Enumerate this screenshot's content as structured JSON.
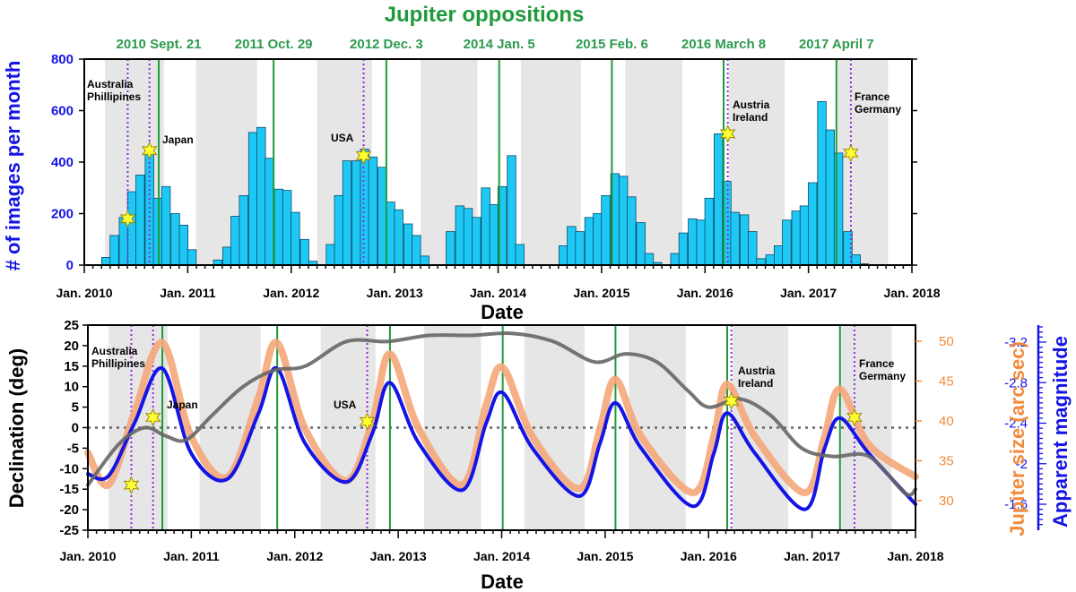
{
  "chart_data": [
    {
      "type": "bar",
      "title": "Jupiter oppositions",
      "ylabel": "# of images per month",
      "xlabel": "Date",
      "ylim": [
        0,
        800
      ],
      "yticks": [
        0,
        200,
        400,
        600,
        800
      ],
      "xlim": [
        2010.0,
        2018.0
      ],
      "xticks": [
        {
          "x": 2010,
          "label": "Jan. 2010"
        },
        {
          "x": 2011,
          "label": "Jan. 2011"
        },
        {
          "x": 2012,
          "label": "Jan. 2012"
        },
        {
          "x": 2013,
          "label": "Jan. 2013"
        },
        {
          "x": 2014,
          "label": "Jan. 2014"
        },
        {
          "x": 2015,
          "label": "Jan. 2015"
        },
        {
          "x": 2016,
          "label": "Jan. 2016"
        },
        {
          "x": 2017,
          "label": "Jan. 2017"
        },
        {
          "x": 2018,
          "label": "Jan. 2018"
        }
      ],
      "bar_color": "#1ec8f5",
      "months": [
        {
          "x": 2010.21,
          "v": 30
        },
        {
          "x": 2010.29,
          "v": 115
        },
        {
          "x": 2010.38,
          "v": 185
        },
        {
          "x": 2010.46,
          "v": 285
        },
        {
          "x": 2010.54,
          "v": 350
        },
        {
          "x": 2010.63,
          "v": 440
        },
        {
          "x": 2010.71,
          "v": 260
        },
        {
          "x": 2010.79,
          "v": 305
        },
        {
          "x": 2010.88,
          "v": 200
        },
        {
          "x": 2010.96,
          "v": 155
        },
        {
          "x": 2011.04,
          "v": 60
        },
        {
          "x": 2011.29,
          "v": 20
        },
        {
          "x": 2011.38,
          "v": 70
        },
        {
          "x": 2011.46,
          "v": 190
        },
        {
          "x": 2011.54,
          "v": 270
        },
        {
          "x": 2011.63,
          "v": 515
        },
        {
          "x": 2011.71,
          "v": 535
        },
        {
          "x": 2011.79,
          "v": 415
        },
        {
          "x": 2011.88,
          "v": 295
        },
        {
          "x": 2011.96,
          "v": 290
        },
        {
          "x": 2012.04,
          "v": 205
        },
        {
          "x": 2012.13,
          "v": 100
        },
        {
          "x": 2012.21,
          "v": 15
        },
        {
          "x": 2012.38,
          "v": 80
        },
        {
          "x": 2012.46,
          "v": 270
        },
        {
          "x": 2012.54,
          "v": 405
        },
        {
          "x": 2012.63,
          "v": 405
        },
        {
          "x": 2012.71,
          "v": 450
        },
        {
          "x": 2012.79,
          "v": 420
        },
        {
          "x": 2012.88,
          "v": 380
        },
        {
          "x": 2012.96,
          "v": 245
        },
        {
          "x": 2013.04,
          "v": 215
        },
        {
          "x": 2013.13,
          "v": 160
        },
        {
          "x": 2013.21,
          "v": 115
        },
        {
          "x": 2013.29,
          "v": 35
        },
        {
          "x": 2013.54,
          "v": 130
        },
        {
          "x": 2013.63,
          "v": 230
        },
        {
          "x": 2013.71,
          "v": 220
        },
        {
          "x": 2013.79,
          "v": 185
        },
        {
          "x": 2013.88,
          "v": 300
        },
        {
          "x": 2013.96,
          "v": 235
        },
        {
          "x": 2014.04,
          "v": 305
        },
        {
          "x": 2014.13,
          "v": 425
        },
        {
          "x": 2014.21,
          "v": 80
        },
        {
          "x": 2014.63,
          "v": 75
        },
        {
          "x": 2014.71,
          "v": 150
        },
        {
          "x": 2014.79,
          "v": 130
        },
        {
          "x": 2014.88,
          "v": 185
        },
        {
          "x": 2014.96,
          "v": 200
        },
        {
          "x": 2015.04,
          "v": 270
        },
        {
          "x": 2015.13,
          "v": 355
        },
        {
          "x": 2015.21,
          "v": 345
        },
        {
          "x": 2015.29,
          "v": 265
        },
        {
          "x": 2015.38,
          "v": 165
        },
        {
          "x": 2015.46,
          "v": 45
        },
        {
          "x": 2015.54,
          "v": 10
        },
        {
          "x": 2015.71,
          "v": 45
        },
        {
          "x": 2015.79,
          "v": 125
        },
        {
          "x": 2015.88,
          "v": 180
        },
        {
          "x": 2015.96,
          "v": 175
        },
        {
          "x": 2016.04,
          "v": 260
        },
        {
          "x": 2016.13,
          "v": 510
        },
        {
          "x": 2016.21,
          "v": 325
        },
        {
          "x": 2016.29,
          "v": 205
        },
        {
          "x": 2016.38,
          "v": 195
        },
        {
          "x": 2016.46,
          "v": 130
        },
        {
          "x": 2016.54,
          "v": 25
        },
        {
          "x": 2016.63,
          "v": 40
        },
        {
          "x": 2016.71,
          "v": 75
        },
        {
          "x": 2016.79,
          "v": 175
        },
        {
          "x": 2016.88,
          "v": 210
        },
        {
          "x": 2016.96,
          "v": 230
        },
        {
          "x": 2017.04,
          "v": 320
        },
        {
          "x": 2017.13,
          "v": 635
        },
        {
          "x": 2017.21,
          "v": 525
        },
        {
          "x": 2017.29,
          "v": 435
        },
        {
          "x": 2017.38,
          "v": 130
        },
        {
          "x": 2017.46,
          "v": 40
        },
        {
          "x": 2017.54,
          "v": 5
        }
      ]
    },
    {
      "type": "line",
      "xlabel": "Date",
      "ylabel": "Declination (deg)",
      "ylim": [
        -25,
        25
      ],
      "yticks": [
        -25,
        -20,
        -15,
        -10,
        -5,
        0,
        5,
        10,
        15,
        20,
        25
      ],
      "xlim": [
        2010.0,
        2018.0
      ],
      "xticks": [
        {
          "x": 2010,
          "label": "Jan. 2010"
        },
        {
          "x": 2011,
          "label": "Jan. 2011"
        },
        {
          "x": 2012,
          "label": "Jan. 2012"
        },
        {
          "x": 2013,
          "label": "Jan. 2013"
        },
        {
          "x": 2014,
          "label": "Jan. 2014"
        },
        {
          "x": 2015,
          "label": "Jan. 2015"
        },
        {
          "x": 2016,
          "label": "Jan. 2016"
        },
        {
          "x": 2017,
          "label": "Jan. 2017"
        },
        {
          "x": 2018,
          "label": "Jan. 2018"
        }
      ],
      "right_axes": [
        {
          "label": "Jupiter size (arc sec)",
          "color": "#f28a3c",
          "ticks": [
            30,
            35,
            40,
            45,
            50
          ]
        },
        {
          "label": "Apparent magnitude",
          "color": "#1414e6",
          "ticks": [
            "-1.6",
            "-2",
            "-2.4",
            "-2.8",
            "-3.2"
          ]
        }
      ],
      "series": [
        {
          "name": "Declination",
          "color": "#666666",
          "points": [
            [
              2010.0,
              -14
            ],
            [
              2010.3,
              -4
            ],
            [
              2010.55,
              0
            ],
            [
              2010.75,
              -2
            ],
            [
              2010.95,
              -3
            ],
            [
              2011.2,
              3
            ],
            [
              2011.5,
              10
            ],
            [
              2011.8,
              14
            ],
            [
              2012.1,
              15
            ],
            [
              2012.5,
              21
            ],
            [
              2012.9,
              21
            ],
            [
              2013.3,
              22.5
            ],
            [
              2013.7,
              22.5
            ],
            [
              2014.1,
              23
            ],
            [
              2014.5,
              21
            ],
            [
              2014.9,
              16
            ],
            [
              2015.2,
              18
            ],
            [
              2015.5,
              16
            ],
            [
              2015.8,
              9
            ],
            [
              2016.0,
              5
            ],
            [
              2016.3,
              7
            ],
            [
              2016.6,
              3
            ],
            [
              2016.9,
              -5
            ],
            [
              2017.2,
              -7
            ],
            [
              2017.55,
              -7
            ],
            [
              2017.9,
              -16
            ],
            [
              2018.0,
              -15
            ]
          ]
        },
        {
          "name": "Jupiter size (arc sec)",
          "color": "#f5a77a",
          "points": [
            [
              2010.0,
              36
            ],
            [
              2010.2,
              32
            ],
            [
              2010.45,
              41
            ],
            [
              2010.72,
              49.8
            ],
            [
              2011.0,
              38
            ],
            [
              2011.35,
              33
            ],
            [
              2011.65,
              43
            ],
            [
              2011.83,
              49.8
            ],
            [
              2012.1,
              39
            ],
            [
              2012.5,
              32.5
            ],
            [
              2012.75,
              40
            ],
            [
              2012.92,
              48.4
            ],
            [
              2013.2,
              39
            ],
            [
              2013.62,
              32
            ],
            [
              2013.85,
              42
            ],
            [
              2014.01,
              46.7
            ],
            [
              2014.3,
              38
            ],
            [
              2014.75,
              31.5
            ],
            [
              2014.95,
              39
            ],
            [
              2015.1,
              45.2
            ],
            [
              2015.35,
              38
            ],
            [
              2015.85,
              31
            ],
            [
              2016.05,
              38
            ],
            [
              2016.18,
              44.6
            ],
            [
              2016.45,
              38
            ],
            [
              2016.93,
              31
            ],
            [
              2017.12,
              38
            ],
            [
              2017.27,
              44
            ],
            [
              2017.55,
              37
            ],
            [
              2018.0,
              33
            ]
          ]
        },
        {
          "name": "Apparent magnitude",
          "color": "#1414e6",
          "points": [
            [
              2010.0,
              -1.9
            ],
            [
              2010.2,
              -1.88
            ],
            [
              2010.45,
              -2.4
            ],
            [
              2010.72,
              -2.94
            ],
            [
              2011.0,
              -2.1
            ],
            [
              2011.35,
              -1.85
            ],
            [
              2011.65,
              -2.5
            ],
            [
              2011.83,
              -2.94
            ],
            [
              2012.1,
              -2.2
            ],
            [
              2012.5,
              -1.82
            ],
            [
              2012.75,
              -2.3
            ],
            [
              2012.92,
              -2.8
            ],
            [
              2013.2,
              -2.2
            ],
            [
              2013.62,
              -1.74
            ],
            [
              2013.85,
              -2.4
            ],
            [
              2014.01,
              -2.7
            ],
            [
              2014.3,
              -2.15
            ],
            [
              2014.75,
              -1.68
            ],
            [
              2014.95,
              -2.2
            ],
            [
              2015.1,
              -2.6
            ],
            [
              2015.35,
              -2.15
            ],
            [
              2015.85,
              -1.58
            ],
            [
              2016.05,
              -2.1
            ],
            [
              2016.18,
              -2.5
            ],
            [
              2016.45,
              -2.1
            ],
            [
              2016.93,
              -1.55
            ],
            [
              2017.12,
              -2.15
            ],
            [
              2017.27,
              -2.45
            ],
            [
              2017.55,
              -2.1
            ],
            [
              2018.0,
              -1.6
            ]
          ]
        }
      ]
    }
  ],
  "observation_seasons": [
    [
      2010.2,
      2010.77
    ],
    [
      2011.08,
      2011.67
    ],
    [
      2012.25,
      2012.78
    ],
    [
      2013.25,
      2013.8
    ],
    [
      2014.22,
      2014.8
    ],
    [
      2015.23,
      2015.78
    ],
    [
      2016.23,
      2016.77
    ],
    [
      2017.28,
      2017.77
    ]
  ],
  "oppositions": [
    {
      "x": 2010.72,
      "label": "2010 Sept. 21"
    },
    {
      "x": 2011.83,
      "label": "2011 Oct. 29"
    },
    {
      "x": 2012.92,
      "label": "2012 Dec. 3"
    },
    {
      "x": 2014.01,
      "label": "2014 Jan. 5"
    },
    {
      "x": 2015.1,
      "label": "2015 Feb. 6"
    },
    {
      "x": 2016.18,
      "label": "2016 March 8"
    },
    {
      "x": 2017.27,
      "label": "2017 April 7"
    }
  ],
  "impact_events": [
    {
      "x": 2010.42,
      "bar_y": 180,
      "dec_y": -14,
      "label": "Australia\nPhillipines"
    },
    {
      "x": 2010.63,
      "bar_y": 445,
      "dec_y": 2.5,
      "label": "Japan"
    },
    {
      "x": 2012.7,
      "bar_y": 425,
      "dec_y": 1.5,
      "label": "USA"
    },
    {
      "x": 2016.22,
      "bar_y": 510,
      "dec_y": 6.5,
      "label": "Austria\nIreland"
    },
    {
      "x": 2017.41,
      "bar_y": 435,
      "dec_y": 2.5,
      "label": "France\nGermany"
    }
  ],
  "labels": {
    "title": "Jupiter oppositions",
    "top_xlabel": "Date",
    "top_ylabel": "# of images per month",
    "bot_xlabel": "Date",
    "bot_ylabel": "Declination (deg)",
    "size_ylabel": "Jupiter size (arc sec)",
    "mag_ylabel": "Apparent magnitude"
  },
  "colors": {
    "opposition": "#1f9a3a",
    "impact": "#8a2be2",
    "season_fill": "#e6e6e6",
    "star_fill": "#ffff33",
    "star_stroke": "#a08a00",
    "zero_line": "#666666"
  }
}
